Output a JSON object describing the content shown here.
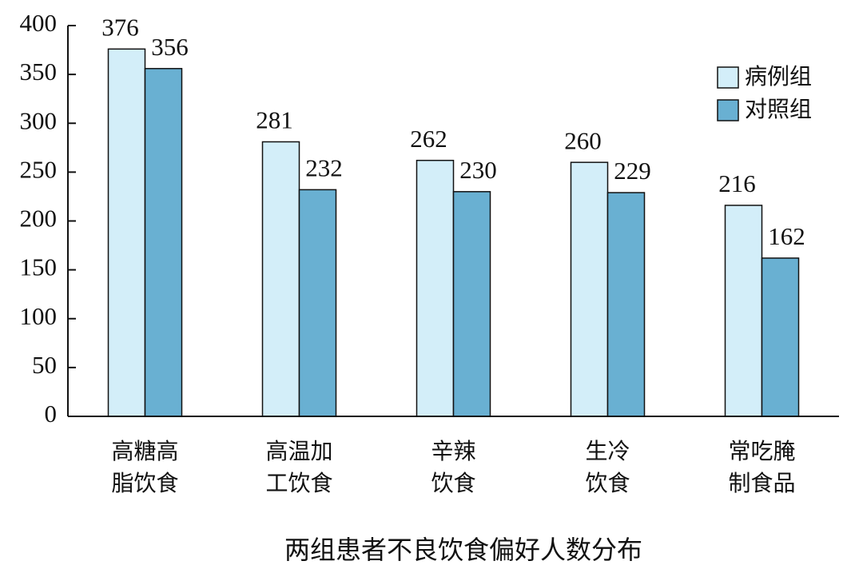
{
  "chart_data": {
    "type": "bar",
    "title": "两组患者不良饮食偏好人数分布",
    "categories": [
      "高糖高脂饮食",
      "高温加工饮食",
      "辛辣饮食",
      "生冷饮食",
      "常吃腌制食品"
    ],
    "series": [
      {
        "name": "病例组",
        "color": "#d3eef9",
        "values": [
          376,
          281,
          262,
          260,
          216
        ]
      },
      {
        "name": "对照组",
        "color": "#69b0d2",
        "values": [
          356,
          232,
          230,
          229,
          162
        ]
      }
    ],
    "ylim": [
      0,
      400
    ],
    "yticks": [
      0,
      50,
      100,
      150,
      200,
      250,
      300,
      350,
      400
    ],
    "legend": "top-right"
  }
}
